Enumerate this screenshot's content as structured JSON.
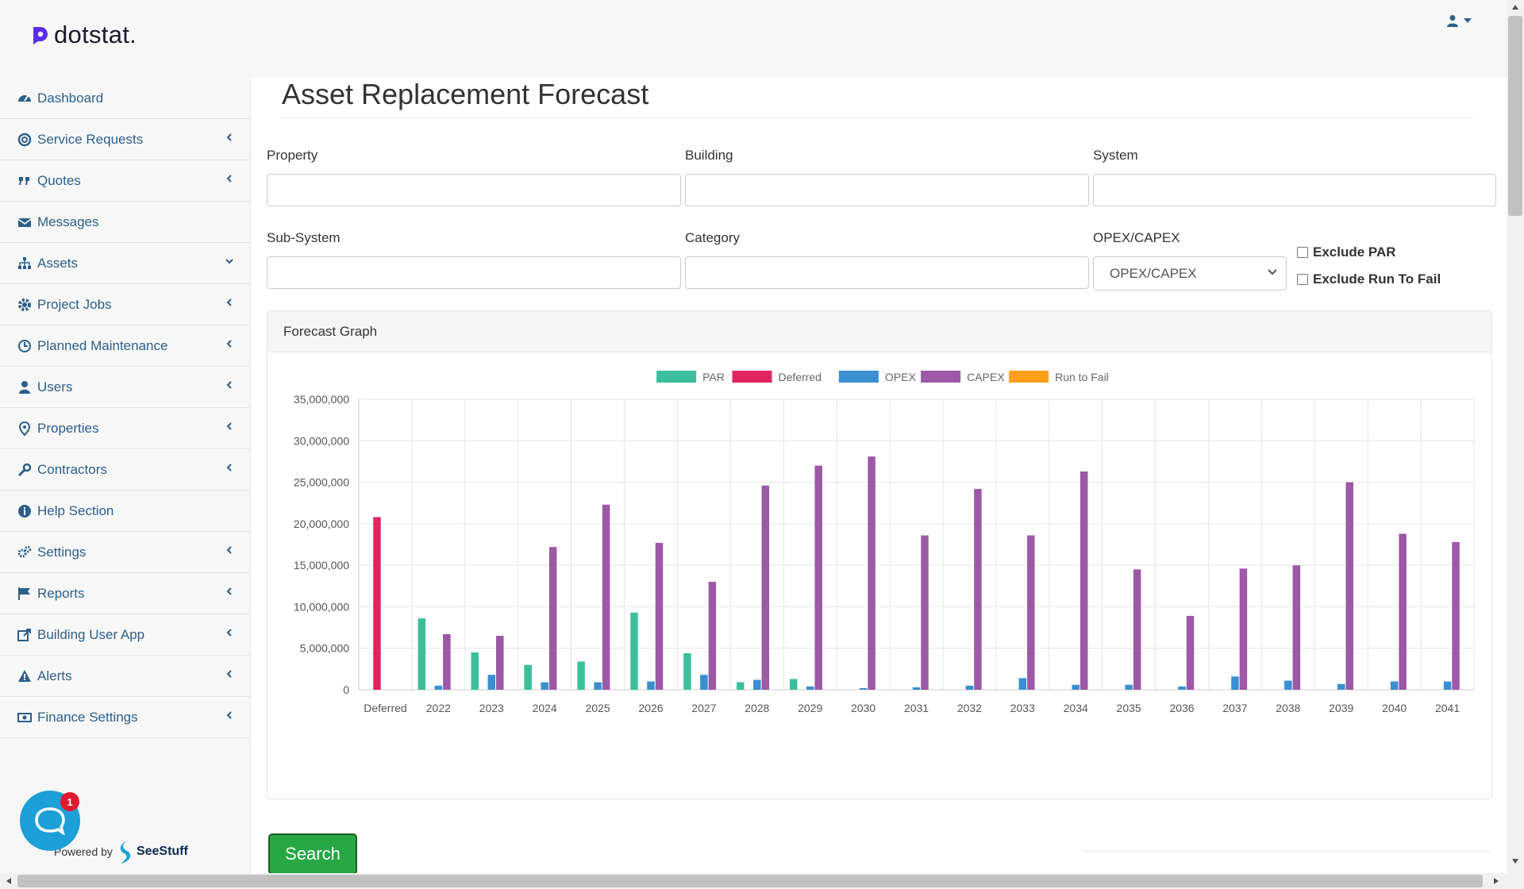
{
  "app": {
    "name": "dotstat.",
    "brand_color": "#5b2ee6"
  },
  "user_menu": {
    "icon": "user-icon",
    "caret": "caret-down-icon"
  },
  "sidebar": {
    "items": [
      {
        "label": "Dashboard",
        "icon": "dashboard-icon",
        "has_chevron": false
      },
      {
        "label": "Service Requests",
        "icon": "lifebuoy-icon",
        "has_chevron": true
      },
      {
        "label": "Quotes",
        "icon": "quote-icon",
        "has_chevron": true
      },
      {
        "label": "Messages",
        "icon": "envelope-icon",
        "has_chevron": false
      },
      {
        "label": "Assets",
        "icon": "sitemap-icon",
        "has_chevron": true,
        "expanded": true
      },
      {
        "label": "Project Jobs",
        "icon": "gear-icon",
        "has_chevron": true
      },
      {
        "label": "Planned Maintenance",
        "icon": "clock-icon",
        "has_chevron": true
      },
      {
        "label": "Users",
        "icon": "user-icon",
        "has_chevron": true
      },
      {
        "label": "Properties",
        "icon": "map-marker-icon",
        "has_chevron": true
      },
      {
        "label": "Contractors",
        "icon": "wrench-icon",
        "has_chevron": true
      },
      {
        "label": "Help Section",
        "icon": "info-icon",
        "has_chevron": false
      },
      {
        "label": "Settings",
        "icon": "gears-icon",
        "has_chevron": true
      },
      {
        "label": "Reports",
        "icon": "flag-icon",
        "has_chevron": true
      },
      {
        "label": "Building User App",
        "icon": "external-link-icon",
        "has_chevron": true
      },
      {
        "label": "Alerts",
        "icon": "warning-icon",
        "has_chevron": true
      },
      {
        "label": "Finance Settings",
        "icon": "money-icon",
        "has_chevron": true
      }
    ],
    "powered_by": "Powered by",
    "powered_brand": "SeeStuff",
    "chat_badge": "1"
  },
  "main": {
    "title": "Asset Replacement Forecast",
    "filters": {
      "property_label": "Property",
      "property_value": "",
      "building_label": "Building",
      "building_value": "",
      "system_label": "System",
      "system_value": "",
      "subsystem_label": "Sub-System",
      "subsystem_value": "",
      "category_label": "Category",
      "category_value": "",
      "opex_capex_label": "OPEX/CAPEX",
      "opex_capex_selected": "OPEX/CAPEX",
      "exclude_par_label": "Exclude PAR",
      "exclude_par_checked": false,
      "exclude_rtf_label": "Exclude Run To Fail",
      "exclude_rtf_checked": false
    },
    "panel_title": "Forecast Graph",
    "search_label": "Search"
  },
  "chart_data": {
    "type": "bar",
    "title": "",
    "xlabel": "",
    "ylabel": "",
    "ylim": [
      0,
      35000000
    ],
    "yticks": [
      0,
      5000000,
      10000000,
      15000000,
      20000000,
      25000000,
      30000000,
      35000000
    ],
    "ytick_labels": [
      "0",
      "5,000,000",
      "10,000,000",
      "15,000,000",
      "20,000,000",
      "25,000,000",
      "30,000,000",
      "35,000,000"
    ],
    "grid": true,
    "legend_position": "top-center",
    "categories": [
      "Deferred",
      "2022",
      "2023",
      "2024",
      "2025",
      "2026",
      "2027",
      "2028",
      "2029",
      "2030",
      "2031",
      "2032",
      "2033",
      "2034",
      "2035",
      "2036",
      "2037",
      "2038",
      "2039",
      "2040",
      "2041"
    ],
    "series": [
      {
        "name": "PAR",
        "color": "#3cbf9c",
        "values": [
          0,
          8600000,
          4500000,
          3000000,
          3400000,
          9300000,
          4400000,
          900000,
          1300000,
          0,
          0,
          0,
          0,
          0,
          0,
          0,
          0,
          0,
          0,
          0,
          0
        ]
      },
      {
        "name": "Deferred",
        "color": "#e0245e",
        "values": [
          20800000,
          0,
          0,
          0,
          0,
          0,
          0,
          0,
          0,
          0,
          0,
          0,
          0,
          0,
          0,
          0,
          0,
          0,
          0,
          0,
          0
        ]
      },
      {
        "name": "OPEX",
        "color": "#3a8fd1",
        "values": [
          0,
          500000,
          1800000,
          900000,
          900000,
          1000000,
          1800000,
          1200000,
          400000,
          200000,
          300000,
          500000,
          1400000,
          600000,
          600000,
          400000,
          1600000,
          1100000,
          700000,
          1000000,
          1000000
        ]
      },
      {
        "name": "CAPEX",
        "color": "#9b59a6",
        "values": [
          0,
          6700000,
          6500000,
          17200000,
          22300000,
          17700000,
          13000000,
          24600000,
          27000000,
          28100000,
          18600000,
          24200000,
          18600000,
          26300000,
          14500000,
          8900000,
          14600000,
          15000000,
          25000000,
          18800000,
          17800000
        ]
      },
      {
        "name": "Run to Fail",
        "color": "#ff9f1a",
        "values": [
          0,
          0,
          0,
          0,
          0,
          0,
          0,
          0,
          0,
          0,
          0,
          0,
          0,
          0,
          0,
          0,
          0,
          0,
          0,
          0,
          0
        ]
      }
    ]
  }
}
